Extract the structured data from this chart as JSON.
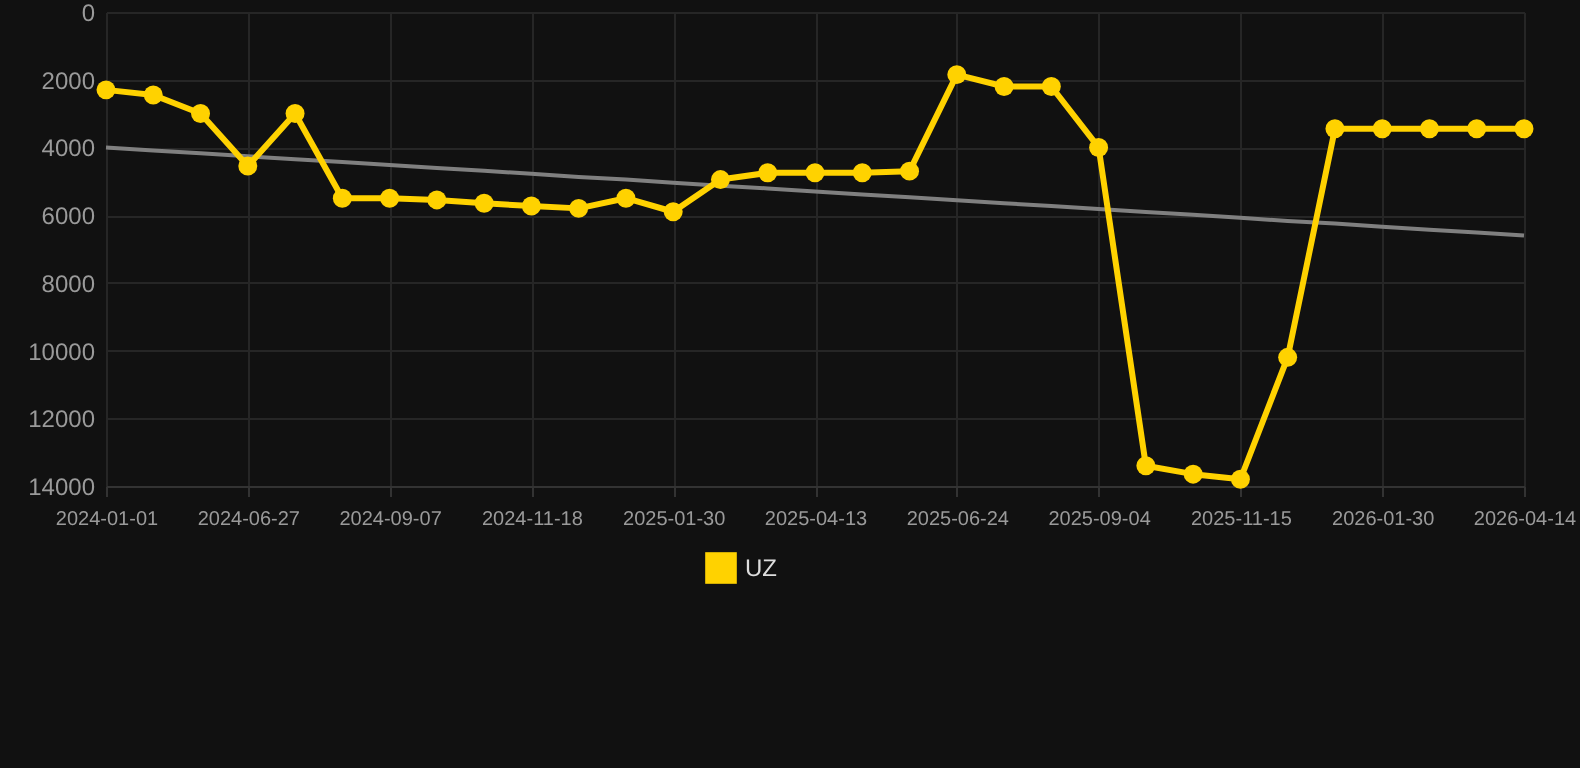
{
  "chart_data": {
    "type": "line",
    "categories": [
      "2024-01-01",
      null,
      null,
      "2024-06-27",
      null,
      null,
      "2024-09-07",
      null,
      null,
      "2024-11-18",
      null,
      null,
      "2025-01-30",
      null,
      null,
      "2025-04-13",
      null,
      null,
      "2025-06-24",
      null,
      null,
      "2025-09-04",
      null,
      null,
      "2025-11-15",
      null,
      null,
      "2026-01-30",
      null,
      null,
      "2026-04-14"
    ],
    "series": [
      {
        "name": "UZ",
        "color": "#ffd200",
        "marker": "circle",
        "values": [
          2300,
          2450,
          3000,
          4550,
          3000,
          5500,
          5500,
          5550,
          5650,
          5730,
          5800,
          5500,
          5900,
          4950,
          4750,
          4750,
          4750,
          4700,
          1850,
          2200,
          2200,
          4000,
          13400,
          13650,
          13800,
          10200,
          3450,
          3450,
          3450,
          3450,
          3450
        ]
      },
      {
        "type": "line",
        "color": "#808080",
        "marker": "none",
        "values": [
          4000,
          4090,
          4170,
          4260,
          4350,
          4430,
          4520,
          4610,
          4690,
          4780,
          4870,
          4950,
          5040,
          5130,
          5210,
          5300,
          5390,
          5470,
          5560,
          5650,
          5730,
          5820,
          5910,
          5990,
          6080,
          6170,
          6250,
          6340,
          6430,
          6510,
          6600
        ]
      }
    ],
    "ylim": [
      14000,
      0
    ],
    "yticks": [
      0,
      2000,
      4000,
      6000,
      8000,
      10000,
      12000,
      14000
    ],
    "grid": true,
    "legend": "bottom"
  }
}
